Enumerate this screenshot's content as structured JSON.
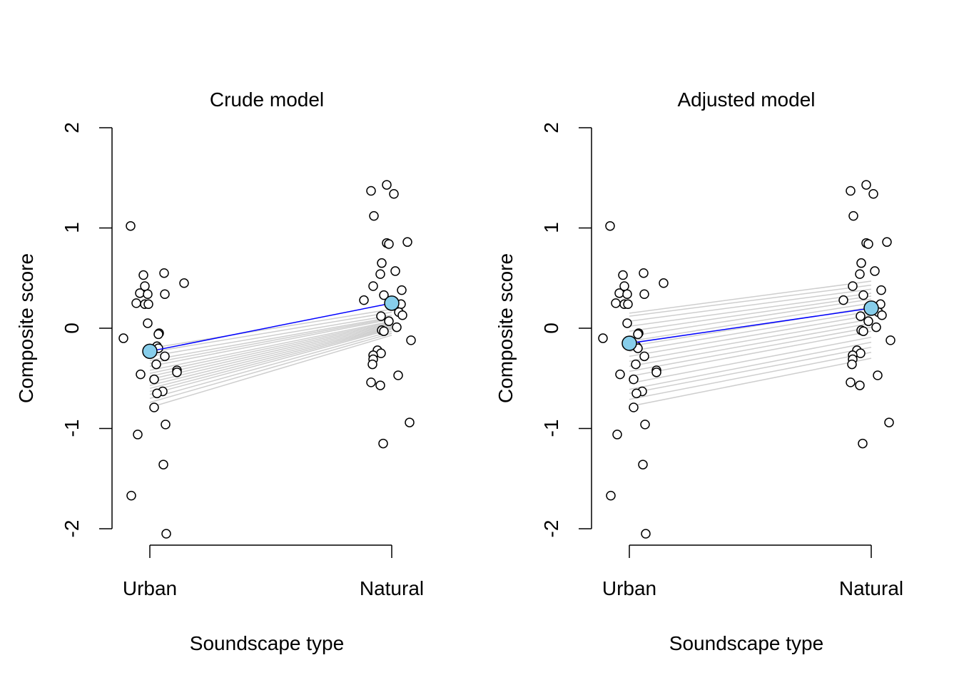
{
  "chart_data": [
    {
      "type": "scatter",
      "title": "Crude model",
      "xlabel": "Soundscape type",
      "ylabel": "Composite score",
      "categories": [
        "Urban",
        "Natural"
      ],
      "y_ticks": [
        "-2",
        "-1",
        "0",
        "1",
        "2"
      ],
      "ylim": [
        -2,
        2
      ],
      "grid": false,
      "points": {
        "Urban": [
          1.02,
          0.55,
          0.53,
          0.45,
          0.42,
          0.35,
          0.34,
          0.34,
          0.25,
          0.24,
          0.24,
          0.05,
          -0.05,
          -0.06,
          -0.1,
          -0.18,
          -0.2,
          -0.28,
          -0.36,
          -0.42,
          -0.44,
          -0.46,
          -0.51,
          -0.63,
          -0.65,
          -0.79,
          -0.96,
          -1.06,
          -1.36,
          -1.67,
          -2.05
        ],
        "Natural": [
          1.43,
          1.37,
          1.34,
          1.12,
          0.86,
          0.85,
          0.84,
          0.65,
          0.57,
          0.54,
          0.42,
          0.38,
          0.33,
          0.28,
          0.24,
          0.16,
          0.13,
          0.12,
          0.07,
          0.01,
          -0.02,
          -0.03,
          -0.12,
          -0.22,
          -0.25,
          -0.27,
          -0.31,
          -0.36,
          -0.47,
          -0.54,
          -0.57,
          -0.94,
          -1.15
        ]
      },
      "individual_lines": [
        [
          -0.2,
          0.19
        ],
        [
          -0.24,
          0.16
        ],
        [
          -0.28,
          0.13
        ],
        [
          -0.32,
          0.11
        ],
        [
          -0.35,
          0.1
        ],
        [
          -0.38,
          0.09
        ],
        [
          -0.42,
          0.07
        ],
        [
          -0.45,
          0.06
        ],
        [
          -0.48,
          0.05
        ],
        [
          -0.51,
          0.04
        ],
        [
          -0.54,
          0.03
        ],
        [
          -0.57,
          0.02
        ],
        [
          -0.6,
          0.01
        ],
        [
          -0.63,
          0.0
        ],
        [
          -0.66,
          -0.01
        ],
        [
          -0.7,
          -0.03
        ],
        [
          -0.74,
          -0.05
        ],
        [
          -0.79,
          -0.07
        ]
      ],
      "mean": {
        "name": "mean",
        "Urban": -0.23,
        "Natural": 0.25
      },
      "colors": {
        "mean_line": "#0000ff",
        "mean_point": "#87ceeb",
        "individual_line": "#bebebe"
      }
    },
    {
      "type": "scatter",
      "title": "Adjusted model",
      "xlabel": "Soundscape type",
      "ylabel": "Composite score",
      "categories": [
        "Urban",
        "Natural"
      ],
      "y_ticks": [
        "-2",
        "-1",
        "0",
        "1",
        "2"
      ],
      "ylim": [
        -2,
        2
      ],
      "grid": false,
      "points": {
        "Urban": [
          1.02,
          0.55,
          0.53,
          0.45,
          0.42,
          0.35,
          0.34,
          0.34,
          0.25,
          0.24,
          0.24,
          0.05,
          -0.05,
          -0.06,
          -0.1,
          -0.18,
          -0.2,
          -0.28,
          -0.36,
          -0.42,
          -0.44,
          -0.46,
          -0.51,
          -0.63,
          -0.65,
          -0.79,
          -0.96,
          -1.06,
          -1.36,
          -1.67,
          -2.05
        ],
        "Natural": [
          1.43,
          1.37,
          1.34,
          1.12,
          0.86,
          0.85,
          0.84,
          0.65,
          0.57,
          0.54,
          0.42,
          0.38,
          0.33,
          0.28,
          0.24,
          0.16,
          0.13,
          0.12,
          0.07,
          0.01,
          -0.02,
          -0.03,
          -0.12,
          -0.22,
          -0.25,
          -0.27,
          -0.31,
          -0.36,
          -0.47,
          -0.54,
          -0.57,
          -0.94,
          -1.15
        ]
      },
      "individual_lines": [
        [
          0.15,
          0.47
        ],
        [
          0.12,
          0.43
        ],
        [
          0.07,
          0.39
        ],
        [
          0.02,
          0.35
        ],
        [
          -0.03,
          0.32
        ],
        [
          -0.08,
          0.29
        ],
        [
          -0.13,
          0.25
        ],
        [
          -0.18,
          0.21
        ],
        [
          -0.23,
          0.17
        ],
        [
          -0.28,
          0.13
        ],
        [
          -0.33,
          0.09
        ],
        [
          -0.38,
          0.05
        ],
        [
          -0.43,
          0.01
        ],
        [
          -0.48,
          -0.03
        ],
        [
          -0.55,
          -0.09
        ],
        [
          -0.61,
          -0.14
        ],
        [
          -0.65,
          -0.19
        ],
        [
          -0.71,
          -0.24
        ],
        [
          -0.78,
          -0.3
        ]
      ],
      "mean": {
        "name": "mean",
        "Urban": -0.15,
        "Natural": 0.2
      },
      "colors": {
        "mean_line": "#0000ff",
        "mean_point": "#87ceeb",
        "individual_line": "#bebebe"
      }
    }
  ]
}
